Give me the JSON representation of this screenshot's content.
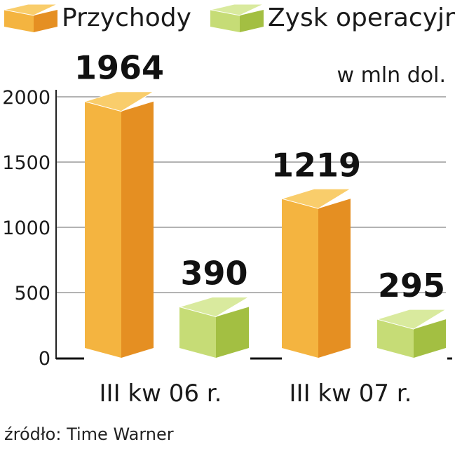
{
  "colors": {
    "revenue": {
      "front": "#f4b440",
      "side": "#e58f22",
      "top": "#f9cd6b"
    },
    "profit": {
      "front": "#c6dc76",
      "side": "#a3bf42",
      "top": "#d9ea9e"
    }
  },
  "chart_data": {
    "type": "bar",
    "categories": [
      "III kw 06 r.",
      "III kw 07 r."
    ],
    "series": [
      {
        "name": "Przychody",
        "values": [
          1964,
          1219
        ],
        "color_key": "revenue"
      },
      {
        "name": "Zysk operacyjny",
        "values": [
          390,
          295
        ],
        "color_key": "profit"
      }
    ],
    "unit_label": "w mln dol.",
    "ylim": [
      0,
      2000
    ],
    "yticks": [
      0,
      500,
      1000,
      1500,
      2000
    ],
    "grid": true,
    "legend": "top",
    "source": "źródło: Time Warner"
  }
}
